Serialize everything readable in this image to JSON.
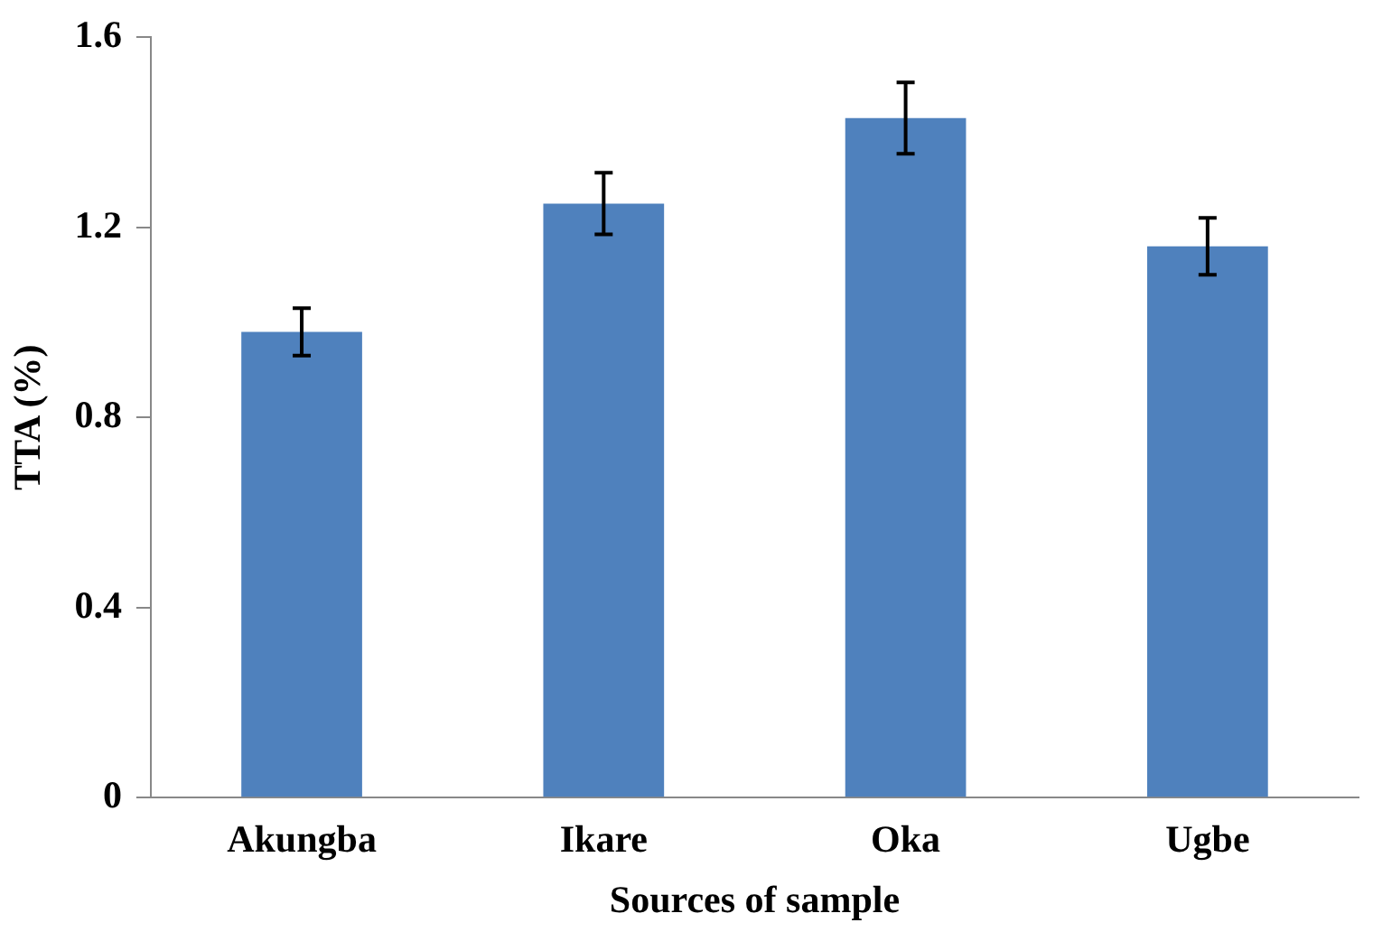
{
  "chart_data": {
    "type": "bar",
    "xlabel": "Sources of sample",
    "ylabel": "TTA (%)",
    "categories": [
      "Akungba",
      "Ikare",
      "Oka",
      "Ugbe"
    ],
    "values": [
      0.98,
      1.25,
      1.43,
      1.16
    ],
    "errors": [
      0.05,
      0.065,
      0.075,
      0.06
    ],
    "color": "#4f81bd",
    "ylim": [
      0,
      1.6
    ],
    "yticks": [
      0,
      0.4,
      0.8,
      1.2,
      1.6
    ],
    "grid": false,
    "legend": false
  }
}
